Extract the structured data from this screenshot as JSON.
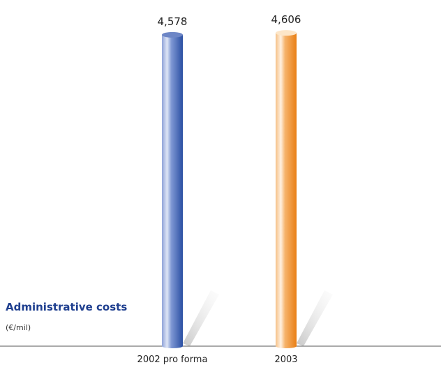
{
  "chart_data": {
    "type": "bar",
    "title": "Administrative costs",
    "unit": "(€/mil)",
    "categories": [
      "2002 pro forma",
      "2003"
    ],
    "values": [
      4578,
      4606
    ],
    "value_labels": [
      "4,578",
      "4,606"
    ],
    "colors": [
      "#3a5fb0",
      "#f0902a"
    ],
    "ylim": [
      0,
      4700
    ],
    "grid": false,
    "legend": "none"
  }
}
